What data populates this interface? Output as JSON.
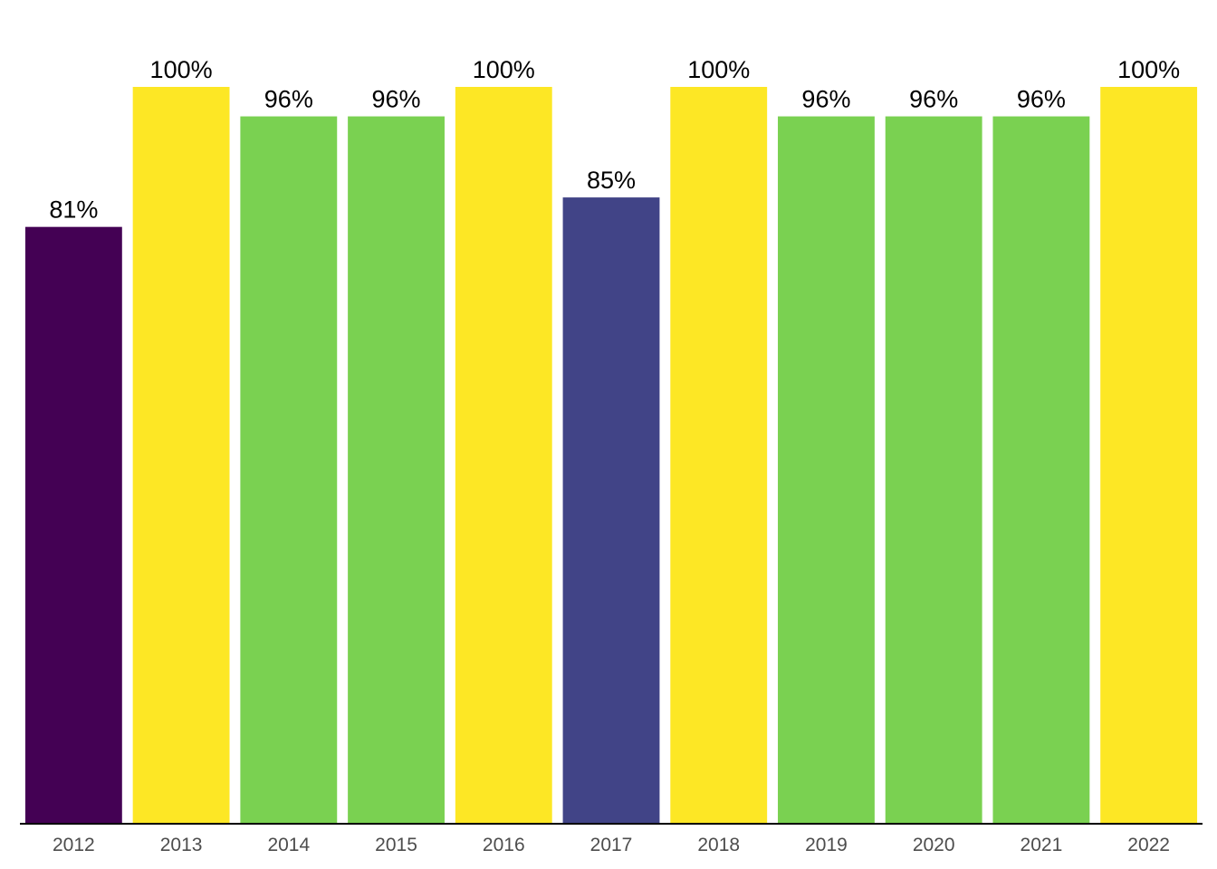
{
  "chart_data": {
    "type": "bar",
    "categories": [
      "2012",
      "2013",
      "2014",
      "2015",
      "2016",
      "2017",
      "2018",
      "2019",
      "2020",
      "2021",
      "2022"
    ],
    "values": [
      81,
      100,
      96,
      96,
      100,
      85,
      100,
      96,
      96,
      96,
      100
    ],
    "data_labels": [
      "81%",
      "100%",
      "96%",
      "96%",
      "100%",
      "85%",
      "100%",
      "96%",
      "96%",
      "96%",
      "100%"
    ],
    "bar_colors": [
      "#440154",
      "#FDE725",
      "#7AD151",
      "#7AD151",
      "#FDE725",
      "#414487",
      "#FDE725",
      "#7AD151",
      "#7AD151",
      "#7AD151",
      "#FDE725"
    ],
    "title": "",
    "xlabel": "",
    "ylabel": "",
    "ylim": [
      0,
      100
    ],
    "grid": false,
    "legend": "none"
  }
}
